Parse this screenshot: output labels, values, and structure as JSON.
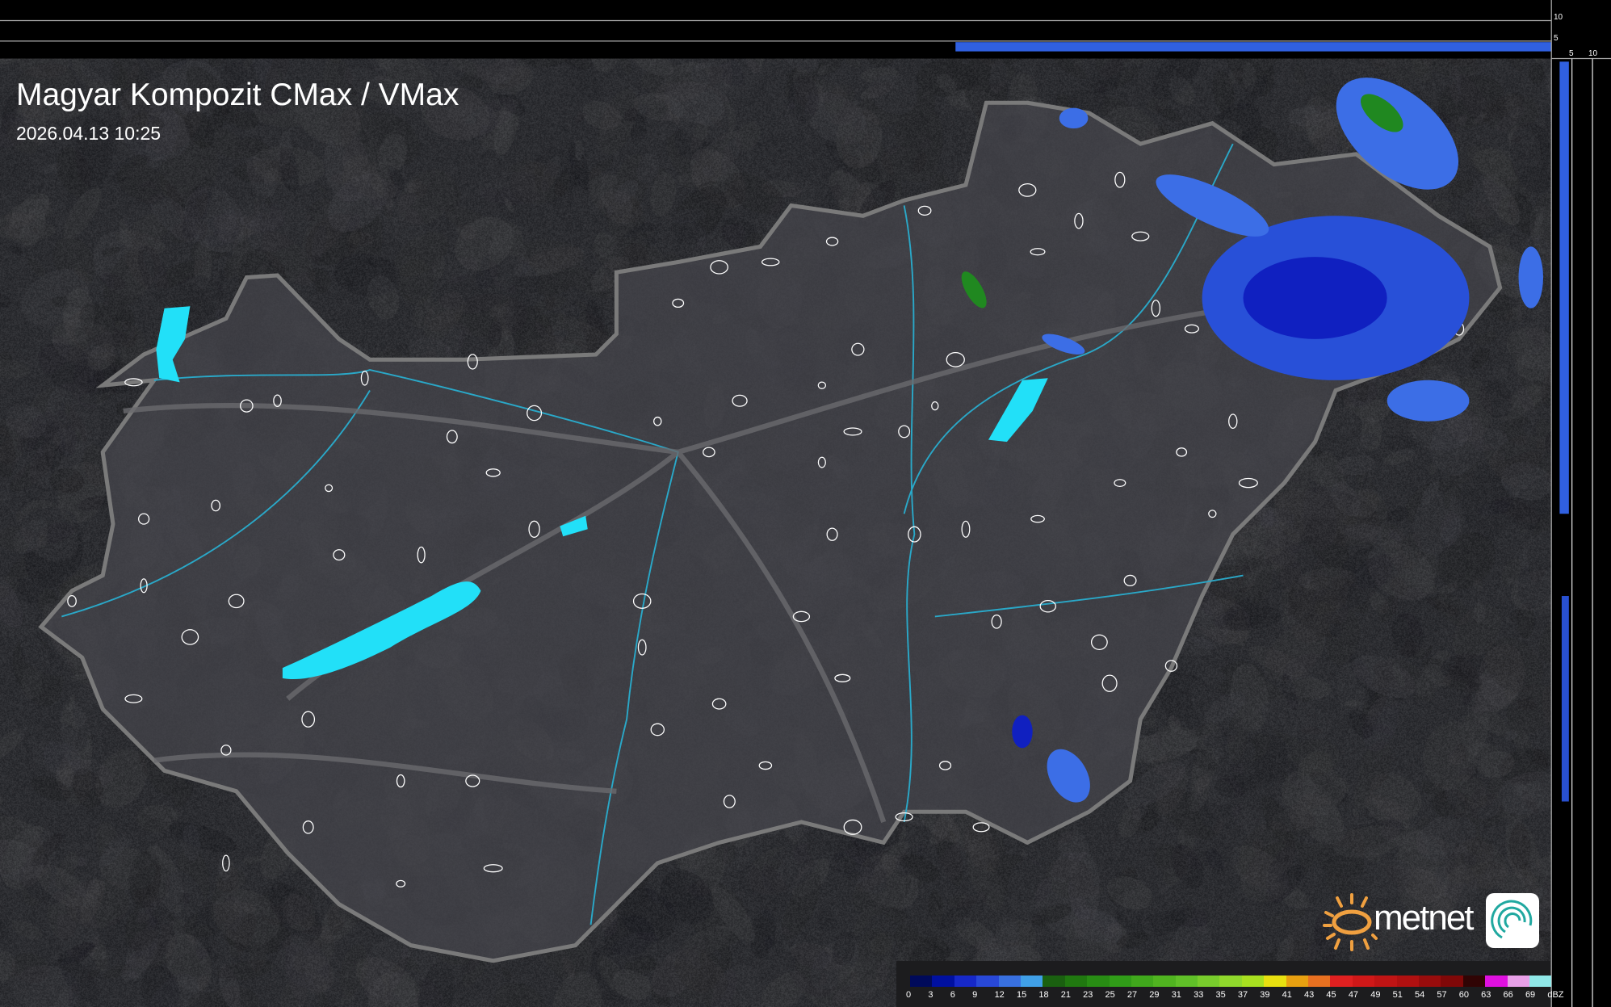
{
  "header": {
    "title": "Magyar Kompozit CMax / VMax",
    "timestamp": "2026.04.13 10:25"
  },
  "side_scales": {
    "top_right": [
      "10",
      "5"
    ],
    "bottom_right": [
      "5",
      "10"
    ]
  },
  "legend": {
    "unit": "dBZ",
    "ticks": [
      "0",
      "3",
      "6",
      "9",
      "12",
      "15",
      "18",
      "21",
      "23",
      "25",
      "27",
      "29",
      "31",
      "33",
      "35",
      "37",
      "39",
      "41",
      "43",
      "45",
      "47",
      "49",
      "51",
      "54",
      "57",
      "60",
      "63",
      "66",
      "69"
    ],
    "colors": [
      "#000a5a",
      "#0010a0",
      "#1628c8",
      "#2848d8",
      "#3870e0",
      "#40a0e8",
      "#1a6010",
      "#207810",
      "#288c14",
      "#309c18",
      "#40a81c",
      "#50b420",
      "#60c028",
      "#78cc2c",
      "#90d82c",
      "#a8e020",
      "#e8e010",
      "#e8a010",
      "#e87020",
      "#e02020",
      "#d01818",
      "#c01414",
      "#b01010",
      "#980c0c",
      "#800808",
      "#300404",
      "#e010e0",
      "#e8a0e8",
      "#90e8e8"
    ]
  },
  "logo": {
    "text": "metnet"
  },
  "colors": {
    "radar_light": "#3c6ee6",
    "radar_dark": "#1020c0",
    "radar_green": "#208820",
    "lakes": "#22e0f8",
    "rivers": "#2aa8c8",
    "border": "#808080"
  }
}
